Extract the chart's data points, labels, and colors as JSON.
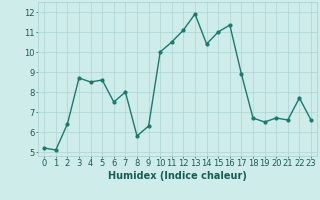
{
  "x": [
    0,
    1,
    2,
    3,
    4,
    5,
    6,
    7,
    8,
    9,
    10,
    11,
    12,
    13,
    14,
    15,
    16,
    17,
    18,
    19,
    20,
    21,
    22,
    23
  ],
  "y": [
    5.2,
    5.1,
    6.4,
    8.7,
    8.5,
    8.6,
    7.5,
    8.0,
    5.8,
    6.3,
    10.0,
    10.5,
    11.1,
    11.9,
    10.4,
    11.0,
    11.35,
    8.9,
    6.7,
    6.5,
    6.7,
    6.6,
    7.7,
    6.6
  ],
  "line_color": "#1a7a6e",
  "marker": "o",
  "marker_size": 2,
  "bg_color": "#ceecea",
  "grid_color": "#aed4d1",
  "xlabel": "Humidex (Indice chaleur)",
  "xlim": [
    -0.5,
    23.5
  ],
  "ylim": [
    4.8,
    12.5
  ],
  "yticks": [
    5,
    6,
    7,
    8,
    9,
    10,
    11,
    12
  ],
  "xticks": [
    0,
    1,
    2,
    3,
    4,
    5,
    6,
    7,
    8,
    9,
    10,
    11,
    12,
    13,
    14,
    15,
    16,
    17,
    18,
    19,
    20,
    21,
    22,
    23
  ],
  "xlabel_fontsize": 7,
  "tick_fontsize": 6,
  "line_width": 1.0
}
